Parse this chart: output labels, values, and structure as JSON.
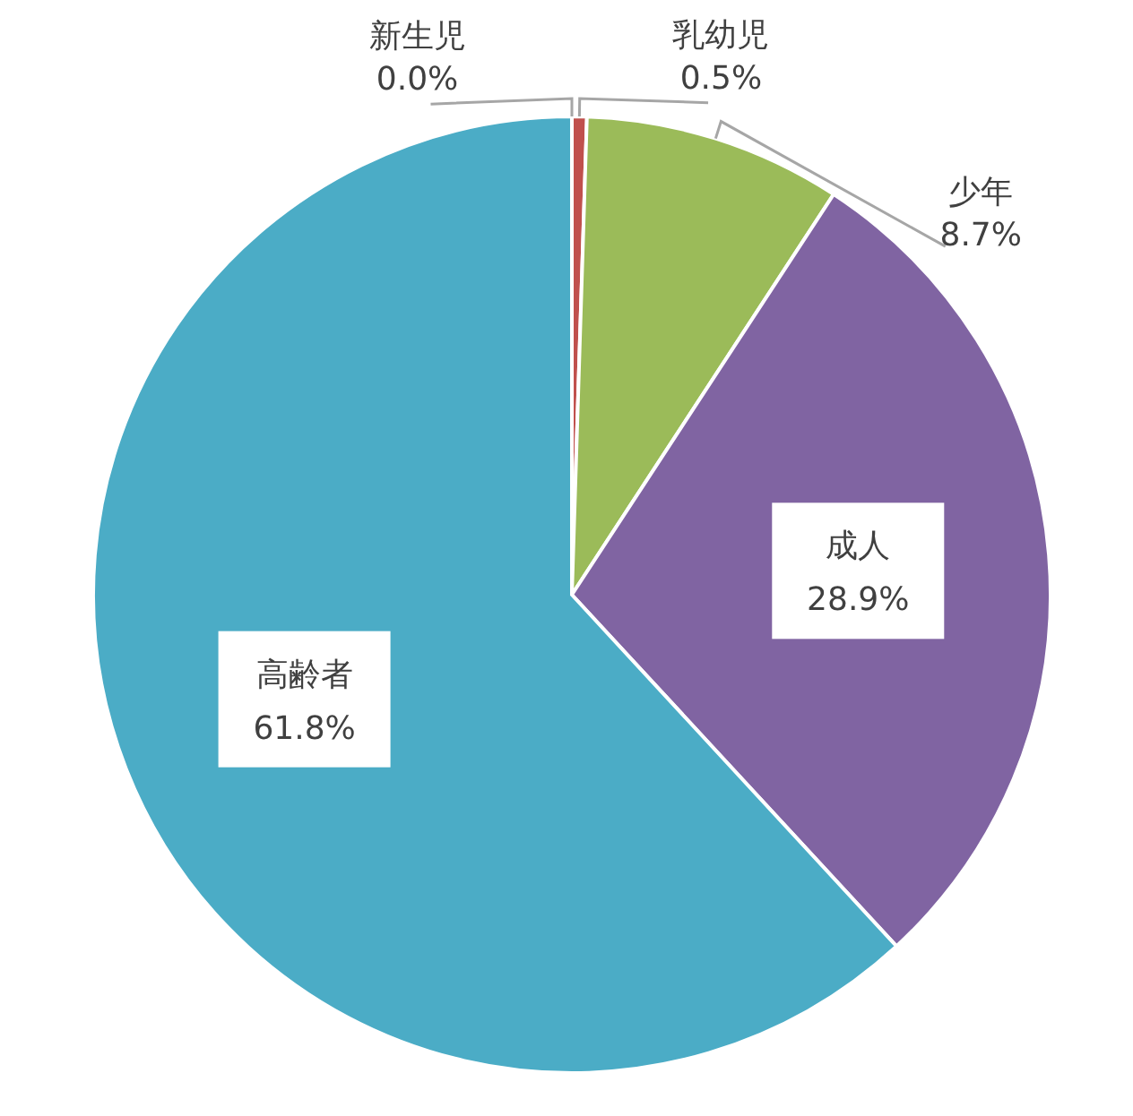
{
  "chart_data": {
    "type": "pie",
    "categories": [
      "新生児",
      "乳幼児",
      "少年",
      "成人",
      "高齢者"
    ],
    "values": [
      0.0,
      0.5,
      8.7,
      28.9,
      61.8
    ],
    "colors": [
      "#4f81bd",
      "#c0504d",
      "#9bbb59",
      "#8064a2",
      "#4bacc6"
    ],
    "value_labels": [
      "0.0%",
      "0.5%",
      "8.7%",
      "28.9%",
      "61.8%"
    ]
  }
}
